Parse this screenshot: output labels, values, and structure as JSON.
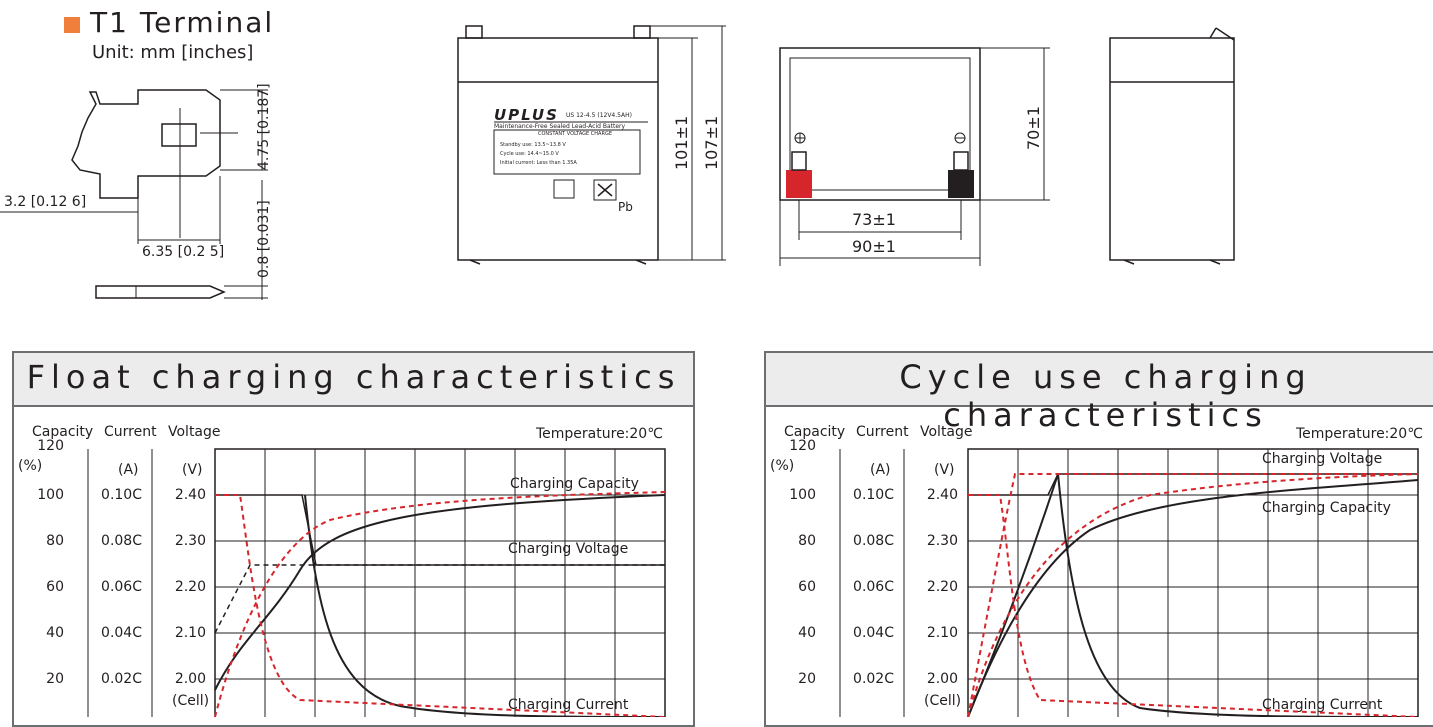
{
  "terminal": {
    "title": "T1 Terminal",
    "unit": "Unit: mm [inches]",
    "dims": {
      "height": "4.75 [0.187]",
      "thickness": "0.8 [0.031]",
      "left": "3.2 [0.12 6]",
      "width": "6.35 [0.2 5]"
    }
  },
  "battery": {
    "brand": "UPLUS",
    "model": "US 12-4.5 (12V4.5AH)",
    "desc": "Maintenance-Free Sealed Lead-Acid Battery",
    "mode": "CONSTANT VOLTAGE CHARGE",
    "line1": "Standby use:  13.5~13.8   V",
    "line2": "Cycle  use:  14.4~15.0   V",
    "line3": "Initial current:  Less than  1.35A",
    "pb": "Pb",
    "dim_h1": "101±1",
    "dim_h2": "107±1",
    "dim_top": "70±1",
    "dim_w1": "73±1",
    "dim_w2": "90±1"
  },
  "float_chart": {
    "title": "Float charging characteristics",
    "hdr_capacity": "Capacity",
    "hdr_current": "Current",
    "hdr_voltage": "Voltage",
    "unit_pct": "(%)",
    "unit_a": "(A)",
    "unit_v": "(V)",
    "unit_cell": "(Cell)",
    "temperature": "Temperature:20℃",
    "lbl_capacity": "Charging Capacity",
    "lbl_voltage": "Charging Voltage",
    "lbl_current": "Charging Current",
    "cap_ticks": [
      "120",
      "100",
      "80",
      "60",
      "40",
      "20"
    ],
    "cur_ticks": [
      "0.10C",
      "0.08C",
      "0.06C",
      "0.04C",
      "0.02C"
    ],
    "volt_ticks": [
      "2.40",
      "2.30",
      "2.20",
      "2.10",
      "2.00"
    ]
  },
  "cycle_chart": {
    "title": "Cycle use charging characteristics",
    "hdr_capacity": "Capacity",
    "hdr_current": "Current",
    "hdr_voltage": "Voltage",
    "unit_pct": "(%)",
    "unit_a": "(A)",
    "unit_v": "(V)",
    "unit_cell": "(Cell)",
    "temperature": "Temperature:20℃",
    "lbl_voltage": "Charging Voltage",
    "lbl_capacity": "Charging Capacity",
    "lbl_current": "Charging Current",
    "cap_ticks": [
      "120",
      "100",
      "80",
      "60",
      "40",
      "20"
    ],
    "cur_ticks": [
      "0.10C",
      "0.08C",
      "0.06C",
      "0.04C",
      "0.02C"
    ],
    "volt_ticks": [
      "2.40",
      "2.30",
      "2.20",
      "2.10",
      "2.00"
    ]
  },
  "colors": {
    "accent": "#f07f3b",
    "red_dash": "#d7262b",
    "line": "#231f20",
    "panel_head": "#ececec"
  }
}
